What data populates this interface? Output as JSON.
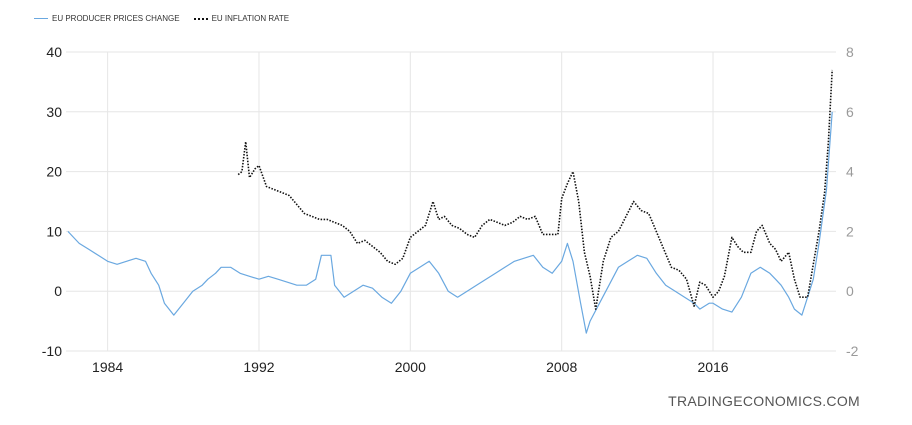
{
  "legend": {
    "series_1": "EU PRODUCER PRICES CHANGE",
    "series_2": "EU INFLATION RATE"
  },
  "watermark": "TRADINGECONOMICS.COM",
  "colors": {
    "ppi": "#6aa8e0",
    "inflation": "#111111",
    "grid": "#e6e6e6"
  },
  "chart_data": {
    "type": "line",
    "title": "",
    "xlabel": "",
    "ylabel_left": "",
    "ylabel_right": "",
    "x_ticks": [
      "1984",
      "1992",
      "2000",
      "2008",
      "2016"
    ],
    "y_left_ticks": [
      "40",
      "30",
      "20",
      "10",
      "0",
      "-10"
    ],
    "y_right_ticks": [
      "8",
      "6",
      "4",
      "2",
      "0",
      "-2"
    ],
    "ylim_left": [
      -10,
      40
    ],
    "ylim_right": [
      -2,
      8
    ],
    "xlim": [
      1981.8,
      2022.5
    ],
    "grid": true,
    "legend_position": "top-left",
    "series": [
      {
        "name": "EU PRODUCER PRICES CHANGE",
        "axis": "left",
        "style": "solid",
        "x": [
          1981.9,
          1982.5,
          1983,
          1983.5,
          1984,
          1984.5,
          1985,
          1985.5,
          1986,
          1986.3,
          1986.7,
          1987,
          1987.5,
          1988,
          1988.5,
          1989,
          1989.3,
          1989.7,
          1990,
          1990.5,
          1991,
          1991.5,
          1992,
          1992.5,
          1993,
          1993.5,
          1994,
          1994.5,
          1995,
          1995.3,
          1995.8,
          1996,
          1996.5,
          1997,
          1997.5,
          1998,
          1998.5,
          1999,
          1999.5,
          2000,
          2000.5,
          2001,
          2001.5,
          2002,
          2002.5,
          2003,
          2003.5,
          2004,
          2004.5,
          2005,
          2005.5,
          2006,
          2006.5,
          2007,
          2007.5,
          2008,
          2008.3,
          2008.6,
          2009,
          2009.3,
          2009.5,
          2010,
          2010.5,
          2011,
          2011.5,
          2012,
          2012.5,
          2013,
          2013.5,
          2014,
          2014.5,
          2015,
          2015.3,
          2015.8,
          2016,
          2016.5,
          2017,
          2017.5,
          2018,
          2018.5,
          2019,
          2019.3,
          2019.6,
          2020,
          2020.3,
          2020.7,
          2021,
          2021.3,
          2021.6,
          2022,
          2022.3
        ],
        "values": [
          10,
          8,
          7,
          6,
          5,
          4.5,
          5,
          5.5,
          5,
          3,
          1,
          -2,
          -4,
          -2,
          0,
          1,
          2,
          3,
          4,
          4,
          3,
          2.5,
          2,
          2.5,
          2,
          1.5,
          1,
          1,
          2,
          6,
          6,
          1,
          -1,
          0,
          1,
          0.5,
          -1,
          -2,
          0,
          3,
          4,
          5,
          3,
          0,
          -1,
          0,
          1,
          2,
          3,
          4,
          5,
          5.5,
          6,
          4,
          3,
          5,
          8,
          5,
          -2,
          -7,
          -5,
          -2,
          1,
          4,
          5,
          6,
          5.5,
          3,
          1,
          0,
          -1,
          -2,
          -3,
          -2,
          -2,
          -3,
          -3.5,
          -1,
          3,
          4,
          3,
          2,
          1,
          -1,
          -3,
          -4,
          -1,
          2,
          8,
          17,
          30
        ]
      },
      {
        "name": "EU INFLATION RATE",
        "axis": "right",
        "style": "dotted",
        "x": [
          1990.9,
          1991.1,
          1991.3,
          1991.5,
          1991.8,
          1992,
          1992.4,
          1992.8,
          1993.2,
          1993.6,
          1994,
          1994.4,
          1994.8,
          1995.2,
          1995.6,
          1996,
          1996.4,
          1996.8,
          1997.2,
          1997.6,
          1998,
          1998.4,
          1998.8,
          1999.2,
          1999.6,
          2000,
          2000.4,
          2000.8,
          2001.2,
          2001.5,
          2001.8,
          2002.2,
          2002.6,
          2003,
          2003.4,
          2003.8,
          2004.2,
          2004.6,
          2005,
          2005.4,
          2005.8,
          2006.2,
          2006.6,
          2007,
          2007.4,
          2007.8,
          2008,
          2008.3,
          2008.6,
          2008.9,
          2009.2,
          2009.5,
          2009.8,
          2010.2,
          2010.6,
          2011,
          2011.4,
          2011.8,
          2012.2,
          2012.6,
          2013,
          2013.4,
          2013.8,
          2014.2,
          2014.6,
          2015,
          2015.3,
          2015.6,
          2016,
          2016.3,
          2016.6,
          2017,
          2017.3,
          2017.6,
          2018,
          2018.3,
          2018.6,
          2019,
          2019.3,
          2019.6,
          2020,
          2020.3,
          2020.6,
          2021,
          2021.3,
          2021.6,
          2021.9,
          2022.1,
          2022.3
        ],
        "values": [
          3.9,
          4.0,
          5.0,
          3.8,
          4.1,
          4.2,
          3.5,
          3.4,
          3.3,
          3.2,
          2.9,
          2.6,
          2.5,
          2.4,
          2.4,
          2.3,
          2.2,
          2.0,
          1.6,
          1.7,
          1.5,
          1.3,
          1.0,
          0.9,
          1.1,
          1.8,
          2.0,
          2.2,
          3.0,
          2.4,
          2.5,
          2.2,
          2.1,
          1.9,
          1.8,
          2.2,
          2.4,
          2.3,
          2.2,
          2.3,
          2.5,
          2.4,
          2.5,
          1.9,
          1.9,
          1.9,
          3.1,
          3.6,
          4.0,
          3.0,
          1.3,
          0.5,
          -0.6,
          1.0,
          1.8,
          2.0,
          2.5,
          3.0,
          2.7,
          2.6,
          2.0,
          1.4,
          0.8,
          0.7,
          0.4,
          -0.5,
          0.3,
          0.2,
          -0.2,
          0.0,
          0.5,
          1.8,
          1.5,
          1.3,
          1.3,
          2.0,
          2.2,
          1.6,
          1.4,
          1.0,
          1.3,
          0.4,
          -0.2,
          -0.2,
          0.9,
          2.0,
          3.3,
          5.0,
          7.4
        ]
      }
    ]
  }
}
